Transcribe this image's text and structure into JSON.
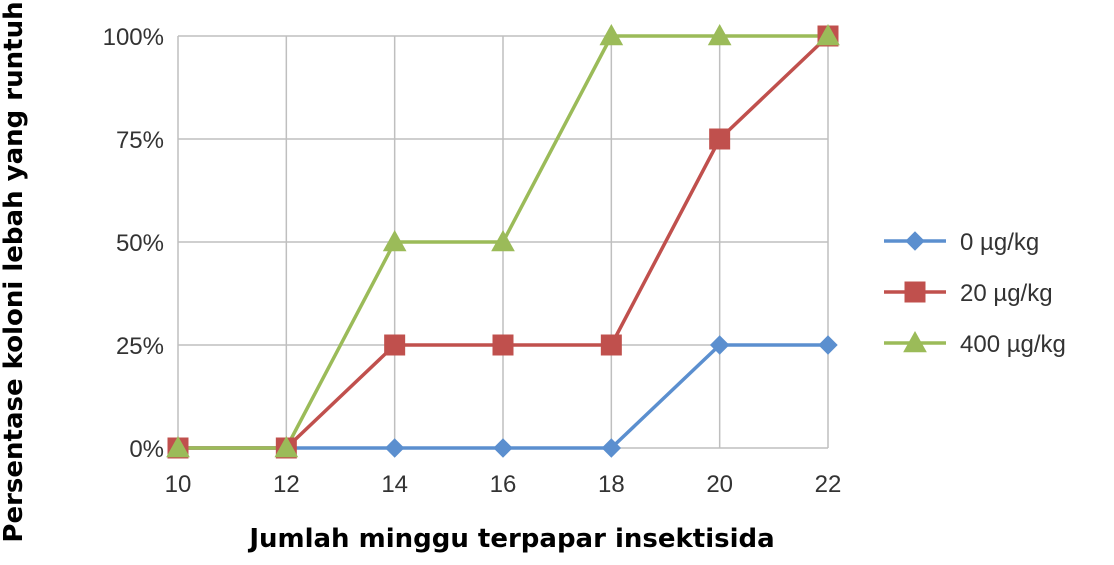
{
  "chart_data": {
    "type": "line",
    "title": "",
    "xlabel": "Jumlah minggu terpapar insektisida",
    "ylabel": "Persentase koloni lebah yang runtuh",
    "x": [
      10,
      12,
      14,
      16,
      18,
      20,
      22
    ],
    "x_tick_labels": [
      "10",
      "12",
      "14",
      "16",
      "18",
      "20",
      "22"
    ],
    "y_ticks": [
      0,
      25,
      50,
      75,
      100
    ],
    "y_tick_labels": [
      "0%",
      "25%",
      "50%",
      "75%",
      "100%"
    ],
    "xlim": [
      10,
      22
    ],
    "ylim": [
      0,
      100
    ],
    "grid": true,
    "legend_position": "right",
    "series": [
      {
        "name": "0 µg/kg",
        "values": [
          0,
          0,
          0,
          0,
          0,
          25,
          25
        ],
        "color": "#5b8fcf",
        "marker": "diamond"
      },
      {
        "name": "20 µg/kg",
        "values": [
          0,
          0,
          25,
          25,
          25,
          75,
          100
        ],
        "color": "#c0504d",
        "marker": "square"
      },
      {
        "name": "400 µg/kg",
        "values": [
          0,
          0,
          50,
          50,
          100,
          100,
          100
        ],
        "color": "#9bbb59",
        "marker": "triangle"
      }
    ]
  }
}
